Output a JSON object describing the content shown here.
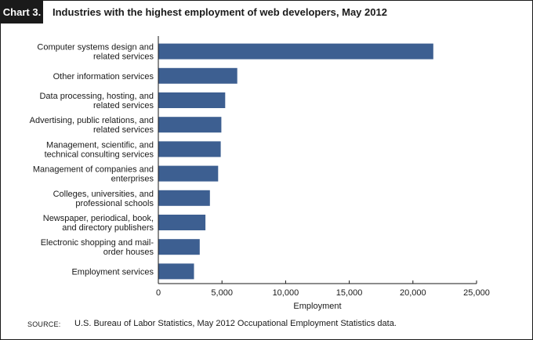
{
  "header": {
    "label": "Chart 3.",
    "title": "Industries with the highest employment of web developers, May 2012"
  },
  "footer": {
    "source_label": "SOURCE:",
    "source_text": "U.S. Bureau of Labor Statistics, May 2012 Occupational Employment Statistics data."
  },
  "colors": {
    "bar": "#3d5f91",
    "axis": "#1a1a1a",
    "header_bg": "#1a1a1a"
  },
  "chart_data": {
    "type": "bar",
    "orientation": "horizontal",
    "xlabel": "Employment",
    "ylabel": "",
    "xlim": [
      0,
      25000
    ],
    "ticks": [
      "0",
      "5,000",
      "10,000",
      "15,000",
      "20,000",
      "25,000"
    ],
    "tick_values": [
      0,
      5000,
      10000,
      15000,
      20000,
      25000
    ],
    "grid": false,
    "categories": [
      [
        "Computer systems design and",
        "related services"
      ],
      [
        "Other information services"
      ],
      [
        "Data processing, hosting, and",
        "related services"
      ],
      [
        "Advertising, public relations, and",
        "related services"
      ],
      [
        "Management, scientific, and",
        "technical consulting services"
      ],
      [
        "Management of companies and",
        "enterprises"
      ],
      [
        "Colleges, universities, and",
        "professional schools"
      ],
      [
        "Newspaper, periodical, book,",
        "and directory publishers"
      ],
      [
        "Electronic shopping and mail-",
        "order houses"
      ],
      [
        "Employment services"
      ]
    ],
    "values": [
      21600,
      6200,
      5250,
      4950,
      4900,
      4700,
      4050,
      3700,
      3250,
      2800
    ]
  }
}
